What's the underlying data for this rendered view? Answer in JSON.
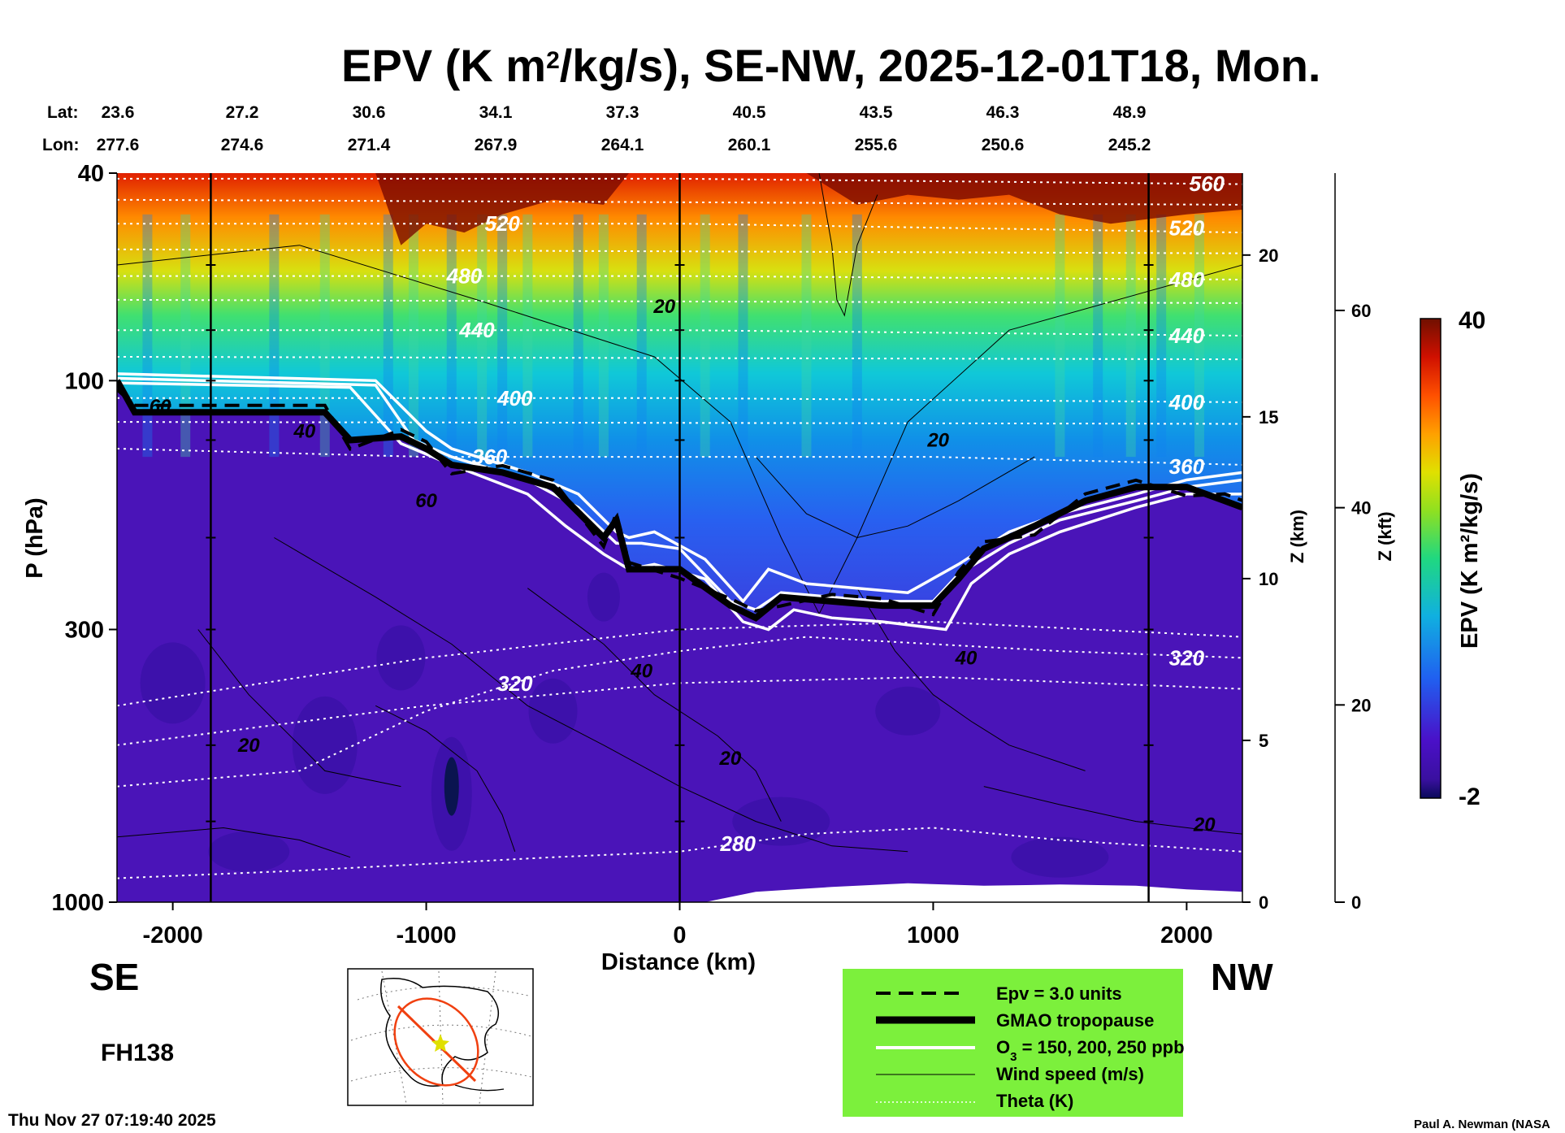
{
  "chart_data": {
    "type": "heatmap",
    "title_main": "EPV (K m",
    "title_sup": "2",
    "title_rest": "/kg/s), SE-NW, 2025-12-01T18, Mon.",
    "lat_label": "Lat:",
    "lon_label": "Lon:",
    "lat_values": [
      "23.6",
      "27.2",
      "30.6",
      "34.1",
      "37.3",
      "40.5",
      "43.5",
      "46.3",
      "48.9"
    ],
    "lon_values": [
      "277.6",
      "274.6",
      "271.4",
      "267.9",
      "264.1",
      "260.1",
      "255.6",
      "250.6",
      "245.2"
    ],
    "xlabel": "Distance (km)",
    "xticks": [
      -2000,
      -1000,
      0,
      1000,
      2000
    ],
    "xlim": [
      -2220,
      2220
    ],
    "ylabel": "P (hPa)",
    "yticks": [
      40,
      100,
      300,
      1000
    ],
    "ylim": [
      1000,
      40
    ],
    "ylog": true,
    "z_km_label": "Z (km)",
    "z_km_ticks": [
      0,
      5,
      10,
      15,
      20
    ],
    "z_kft_label": "Z (kft)",
    "z_kft_ticks": [
      0,
      20,
      40,
      60
    ],
    "direction_left": "SE",
    "direction_right": "NW",
    "forecast_hour": "FH138",
    "timestamp": "Thu Nov 27 07:19:40 2025",
    "credit": "Paul A. Newman (NASA",
    "colorbar": {
      "label": "EPV (K m²/kg/s)",
      "min_label": "-2",
      "max_label": "40",
      "min": -2,
      "max": 40
    },
    "vertical_marker_lines_km": [
      -1850,
      0,
      1850
    ],
    "tropopause_hPa": [
      [
        -2220,
        100
      ],
      [
        -2150,
        115
      ],
      [
        -1400,
        115
      ],
      [
        -1300,
        130
      ],
      [
        -1100,
        128
      ],
      [
        -1000,
        135
      ],
      [
        -900,
        145
      ],
      [
        -700,
        150
      ],
      [
        -500,
        160
      ],
      [
        -300,
        200
      ],
      [
        -250,
        185
      ],
      [
        -200,
        230
      ],
      [
        0,
        230
      ],
      [
        200,
        270
      ],
      [
        300,
        285
      ],
      [
        400,
        260
      ],
      [
        600,
        265
      ],
      [
        800,
        270
      ],
      [
        1000,
        270
      ],
      [
        1100,
        240
      ],
      [
        1200,
        210
      ],
      [
        1400,
        190
      ],
      [
        1600,
        170
      ],
      [
        1800,
        160
      ],
      [
        2000,
        160
      ],
      [
        2150,
        170
      ],
      [
        2220,
        175
      ]
    ],
    "ozone_contours_hPa": [
      {
        "name": "150 ppb",
        "points": [
          [
            -2220,
            97
          ],
          [
            -1200,
            100
          ],
          [
            -1000,
            125
          ],
          [
            -900,
            135
          ],
          [
            -600,
            150
          ],
          [
            -400,
            165
          ],
          [
            -250,
            195
          ],
          [
            -200,
            200
          ],
          [
            -100,
            195
          ],
          [
            100,
            220
          ],
          [
            250,
            265
          ],
          [
            350,
            230
          ],
          [
            500,
            245
          ],
          [
            700,
            250
          ],
          [
            900,
            255
          ],
          [
            1100,
            225
          ],
          [
            1300,
            195
          ],
          [
            1500,
            180
          ],
          [
            1800,
            165
          ],
          [
            2000,
            155
          ],
          [
            2220,
            150
          ]
        ]
      },
      {
        "name": "200 ppb",
        "points": [
          [
            -2220,
            99
          ],
          [
            -1200,
            102
          ],
          [
            -1050,
            130
          ],
          [
            -900,
            140
          ],
          [
            -600,
            155
          ],
          [
            -400,
            175
          ],
          [
            -250,
            205
          ],
          [
            -150,
            205
          ],
          [
            0,
            210
          ],
          [
            200,
            265
          ],
          [
            300,
            275
          ],
          [
            400,
            255
          ],
          [
            600,
            260
          ],
          [
            800,
            265
          ],
          [
            1000,
            265
          ],
          [
            1100,
            235
          ],
          [
            1300,
            205
          ],
          [
            1500,
            185
          ],
          [
            1800,
            170
          ],
          [
            2000,
            160
          ],
          [
            2220,
            155
          ]
        ]
      },
      {
        "name": "250 ppb",
        "points": [
          [
            -2220,
            101
          ],
          [
            -1300,
            103
          ],
          [
            -1100,
            132
          ],
          [
            -900,
            145
          ],
          [
            -600,
            165
          ],
          [
            -450,
            190
          ],
          [
            -300,
            215
          ],
          [
            -200,
            230
          ],
          [
            -100,
            225
          ],
          [
            100,
            240
          ],
          [
            250,
            290
          ],
          [
            350,
            300
          ],
          [
            450,
            275
          ],
          [
            600,
            285
          ],
          [
            800,
            290
          ],
          [
            1050,
            300
          ],
          [
            1150,
            245
          ],
          [
            1300,
            215
          ],
          [
            1500,
            195
          ],
          [
            1800,
            175
          ],
          [
            2000,
            165
          ],
          [
            2220,
            165
          ]
        ]
      }
    ],
    "theta_contours_K": [
      {
        "level": 280,
        "points": [
          [
            -2220,
            900
          ],
          [
            -1500,
            870
          ],
          [
            -500,
            820
          ],
          [
            0,
            800
          ],
          [
            500,
            740
          ],
          [
            1000,
            720
          ],
          [
            1500,
            760
          ],
          [
            2220,
            800
          ]
        ],
        "label_at_km": 230
      },
      {
        "level": 320,
        "points": [
          [
            -2220,
            600
          ],
          [
            -1500,
            560
          ],
          [
            -1000,
            430
          ],
          [
            -500,
            360
          ],
          [
            0,
            330
          ],
          [
            500,
            310
          ],
          [
            1000,
            320
          ],
          [
            1500,
            330
          ],
          [
            2220,
            340
          ]
        ],
        "label_at_km": -650
      },
      {
        "level": 360,
        "points": [
          [
            -2220,
            135
          ],
          [
            -1000,
            140
          ],
          [
            0,
            140
          ],
          [
            1000,
            140
          ],
          [
            2220,
            145
          ]
        ],
        "label_at_km": -750
      },
      {
        "level": 400,
        "points": [
          [
            -2220,
            108
          ],
          [
            0,
            108
          ],
          [
            2220,
            110
          ]
        ],
        "label_at_km": -650
      },
      {
        "level": 440,
        "points": [
          [
            -2220,
            80
          ],
          [
            0,
            80
          ],
          [
            2220,
            82
          ]
        ],
        "label_at_km": -800
      },
      {
        "level": 480,
        "points": [
          [
            -2220,
            63
          ],
          [
            0,
            63
          ],
          [
            2220,
            64
          ]
        ],
        "label_at_km": -850
      },
      {
        "level": 520,
        "points": [
          [
            -2220,
            50
          ],
          [
            0,
            50
          ],
          [
            2220,
            52
          ]
        ],
        "label_at_km": -700
      },
      {
        "level": 560,
        "points": [
          [
            -2220,
            41
          ],
          [
            0,
            41
          ],
          [
            2220,
            42
          ]
        ],
        "label_at_km": 2080
      }
    ],
    "wind_speed_labels_ms": [
      {
        "value": 60,
        "km": -2050,
        "hPa": 112
      },
      {
        "value": 40,
        "km": -1480,
        "hPa": 125
      },
      {
        "value": 60,
        "km": -1000,
        "hPa": 170
      },
      {
        "value": 20,
        "km": -1700,
        "hPa": 500
      },
      {
        "value": 40,
        "km": -150,
        "hPa": 360
      },
      {
        "value": 20,
        "km": 200,
        "hPa": 530
      },
      {
        "value": 20,
        "km": -60,
        "hPa": 72
      },
      {
        "value": 20,
        "km": 1020,
        "hPa": 130
      },
      {
        "value": 40,
        "km": 1130,
        "hPa": 340
      },
      {
        "value": 20,
        "km": 2070,
        "hPa": 710
      }
    ],
    "legend": {
      "epv_text": "Epv = 3.0 units",
      "tropo_text": "GMAO tropopause",
      "ozone_text_pre": "O",
      "ozone_text_sub": "3",
      "ozone_text_post": " = 150, 200, 250 ppb",
      "wind_text": "Wind speed (m/s)",
      "theta_text": "Theta (K)",
      "background": "#7cf03c"
    }
  }
}
